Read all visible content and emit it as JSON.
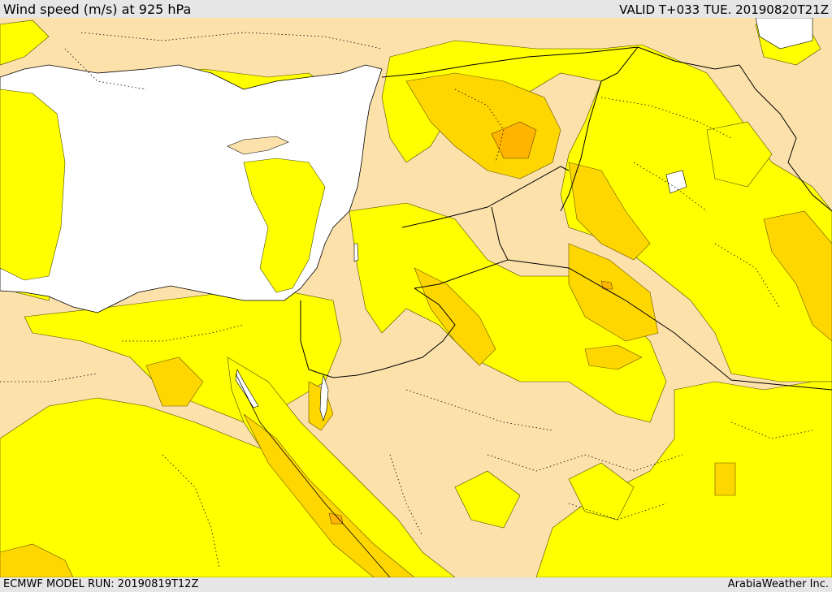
{
  "header": {
    "title": "Wind speed (m/s) at 925 hPa",
    "valid": "VALID T+033 TUE. 20190820T21Z"
  },
  "footer": {
    "model_run": "ECMWF MODEL RUN: 20190819T12Z",
    "brand": "ArabiaWeather Inc."
  },
  "colors": {
    "background_calm": "#fde1aa",
    "wind_band_1": "#ffff00",
    "wind_band_2": "#ffd700",
    "wind_band_3": "#ffb400",
    "sea_no_data": "#ffffff",
    "boundary_line": "#000000"
  }
}
